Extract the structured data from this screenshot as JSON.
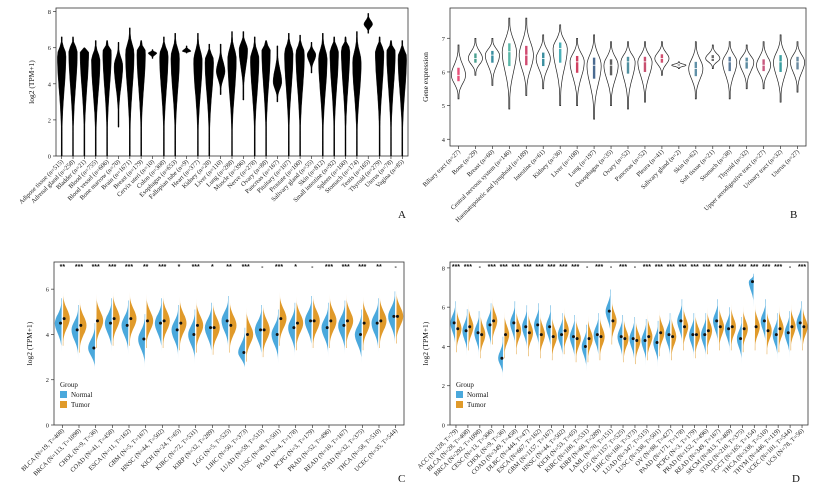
{
  "chart_data": [
    {
      "panel": "A",
      "type": "violin",
      "ylabel": "log2 (TPM+1)",
      "ylim": [
        0,
        8.2
      ],
      "yticks": [
        0,
        2,
        4,
        6,
        8
      ],
      "color": "#000000",
      "categories": [
        "Adipose tissue (n=515)",
        "Adrenal gland (n=258)",
        "Bladder (n=21)",
        "Blood (n=755)",
        "Blood vessel (n=606)",
        "Bone marrow (n=70)",
        "Brain (n=1671)",
        "Breast (n=179)",
        "Cervix uteri (n=10)",
        "Colon (n=308)",
        "Esophagus (n=653)",
        "Fallopian tube (n=9)",
        "Heart (n=377)",
        "Kidney (n=28)",
        "Liver (n=110)",
        "Lung (n=288)",
        "Muscle (n=396)",
        "Nerve (n=278)",
        "Ovary (n=88)",
        "Pancreas (n=167)",
        "Pituitary (n=107)",
        "Prostate (n=100)",
        "Salivary gland (n=55)",
        "Skin (n=812)",
        "Small intestine (n=92)",
        "Spleen (n=100)",
        "Stomach (n=174)",
        "Testis (n=165)",
        "Thyroid (n=279)",
        "Uterus (n=78)",
        "Vagina (n=85)"
      ],
      "median": [
        5.6,
        5.8,
        5.8,
        5.3,
        5.8,
        5.0,
        5.7,
        5.8,
        5.7,
        5.6,
        5.5,
        5.8,
        5.3,
        5.3,
        4.7,
        5.4,
        5.9,
        5.4,
        5.9,
        4.1,
        5.7,
        5.7,
        5.6,
        5.4,
        5.8,
        5.9,
        5.2,
        7.3,
        5.8,
        5.8,
        5.5
      ],
      "min": [
        0,
        0,
        0,
        0,
        0,
        1.6,
        0,
        0,
        5.4,
        0,
        0,
        5.7,
        0,
        0,
        3.4,
        0,
        3.1,
        0,
        0,
        3.0,
        0,
        0,
        4.6,
        0,
        0,
        0,
        0,
        6.8,
        0,
        0,
        0
      ],
      "max": [
        6.6,
        6.6,
        6.0,
        6.4,
        6.4,
        6.3,
        7.1,
        6.4,
        5.9,
        6.6,
        6.8,
        6.1,
        6.8,
        6.2,
        6.2,
        6.9,
        6.9,
        6.6,
        6.4,
        6.1,
        6.8,
        6.7,
        6.3,
        6.8,
        6.6,
        6.6,
        6.9,
        7.9,
        6.6,
        6.4,
        6.4
      ]
    },
    {
      "panel": "B",
      "type": "violin",
      "ylabel": "Gene expression",
      "ylim": [
        3.8,
        7.9
      ],
      "yticks": [
        4,
        5,
        6,
        7
      ],
      "categories": [
        "Biliary tract (n=27)",
        "Bone (n=29)",
        "Breast (n=60)",
        "Central nervous system (n=146)",
        "Haematopoietic and lymphoid (n=189)",
        "Intestine (n=61)",
        "Kidney (n=36)",
        "Liver (n=108)",
        "Lung (n=197)",
        "Oesophagus (n=35)",
        "Ovary (n=52)",
        "Pancreas (n=52)",
        "Pleura (n=41)",
        "Salivary gland (n=2)",
        "Skin (n=62)",
        "Soft tissue (n=21)",
        "Stomach (n=38)",
        "Thyroid (n=32)",
        "Upper aerodigestive tract (n=27)",
        "Urinary tract (n=32)",
        "Uterus (n=27)"
      ],
      "median": [
        5.9,
        6.4,
        6.5,
        6.6,
        6.5,
        6.4,
        6.7,
        6.3,
        6.2,
        6.2,
        6.3,
        6.3,
        6.4,
        6.2,
        6.1,
        6.4,
        6.3,
        6.3,
        6.2,
        6.3,
        6.3
      ],
      "min": [
        5.2,
        5.9,
        5.6,
        4.9,
        5.3,
        5.5,
        5.0,
        5.0,
        4.6,
        5.0,
        4.9,
        5.1,
        5.9,
        6.1,
        5.2,
        6.1,
        5.2,
        5.5,
        5.5,
        5.1,
        5.4
      ],
      "max": [
        6.8,
        7.0,
        7.0,
        7.6,
        7.6,
        7.1,
        7.4,
        7.0,
        7.1,
        6.9,
        6.9,
        6.9,
        6.9,
        6.3,
        6.9,
        6.8,
        6.9,
        6.8,
        6.9,
        7.1,
        6.9
      ],
      "colors": [
        "#e8507a",
        "#4aa090",
        "#3a8ea0",
        "#5ab8a8",
        "#d04a70",
        "#3a8e9e",
        "#4ab0b8",
        "#d04060",
        "#4a6a90",
        "#606060",
        "#5090a0",
        "#c85070",
        "#d05070",
        "#505050",
        "#6090a8",
        "#6a6a6a",
        "#5a7a9a",
        "#5a8aa0",
        "#c85a80",
        "#3a9ea0",
        "#6a8aa0"
      ]
    },
    {
      "panel": "C",
      "type": "split-violin",
      "ylabel": "log2 (TPM+1)",
      "ylim": [
        0,
        7.2
      ],
      "yticks": [
        0,
        2,
        4,
        6
      ],
      "legend": {
        "title": "Group",
        "entries": [
          "Normal",
          "Tumor"
        ]
      },
      "series_colors": {
        "Normal": "#4aa8dc",
        "Tumor": "#e09a2a"
      },
      "categories": [
        "BLCA (N=19, T=408)",
        "BRCA (N=113, T=1098)",
        "CHOL (N=9, T=36)",
        "COAD (N=41, T=458)",
        "ESCA (N=11, T=162)",
        "GBM (N=5, T=167)",
        "HNSC (N=44, T=502)",
        "KICH (N=24, T=65)",
        "KIRC (N=72, T=531)",
        "KIRP (N=32, T=289)",
        "LGG (N=5, T=525)",
        "LIHC (N=50, T=373)",
        "LUAD (N=59, T=515)",
        "LUSC (N=49, T=501)",
        "PAAD (N=4, T=178)",
        "PCPG (N=3, T=179)",
        "PRAD (N=52, T=496)",
        "READ (N=10, T=167)",
        "STAD (N=32, T=375)",
        "THCA (N=58, T=510)",
        "UCEC (N=35, T=544)"
      ],
      "significance": [
        "**",
        "***",
        "***",
        "***",
        "***",
        "**",
        "***",
        "*",
        "***",
        "*",
        "**",
        "***",
        "-",
        "***",
        "*",
        "-",
        "***",
        "***",
        "***",
        "**",
        "-"
      ],
      "normal_median": [
        4.5,
        4.2,
        3.4,
        4.5,
        4.4,
        3.8,
        4.5,
        4.2,
        4.0,
        4.3,
        4.6,
        3.2,
        4.2,
        4.0,
        4.3,
        4.6,
        4.3,
        4.4,
        4.0,
        4.5,
        4.8
      ],
      "tumor_median": [
        4.7,
        4.4,
        4.6,
        4.7,
        4.7,
        4.6,
        4.6,
        4.5,
        4.4,
        4.3,
        4.4,
        4.0,
        4.2,
        4.7,
        4.5,
        4.6,
        4.6,
        4.6,
        4.5,
        4.6,
        4.8
      ]
    },
    {
      "panel": "D",
      "type": "split-violin",
      "ylabel": "log2 (TPM+1)",
      "ylim": [
        0,
        8.3
      ],
      "yticks": [
        0,
        2,
        4,
        6,
        8
      ],
      "legend": {
        "title": "Group",
        "entries": [
          "Normal",
          "Tumor"
        ]
      },
      "series_colors": {
        "Normal": "#4aa8dc",
        "Tumor": "#e09a2a"
      },
      "categories": [
        "ACC (N=128, T=79)",
        "BLCA (N=28, T=408)",
        "BRCA (N=292, T=1098)",
        "CESC (N=13, T=306)",
        "CHOL (N=9, T=36)",
        "COAD (N=349, T=458)",
        "DLBC (N=444, T=47)",
        "ESCA (N=667, T=162)",
        "GBM (N=1157, T=167)",
        "HNSC (N=44, T=502)",
        "KICH (N=53, T=65)",
        "KIRC (N=100, T=531)",
        "KIRP (N=60, T=289)",
        "LAML (N=70, T=151)",
        "LGG (N=1157, T=525)",
        "LIHC (N=160, T=373)",
        "LUAD (N=347, T=515)",
        "LUSC (N=338, T=501)",
        "OV (N=88, T=427)",
        "PAAD (N=171, T=178)",
        "PCPG (N=3, T=179)",
        "PRAD (N=152, T=496)",
        "READ (N=349, T=167)",
        "SKCM (N=813, T=469)",
        "STAD (N=210, T=375)",
        "TGCT (N=165, T=154)",
        "THCA (N=338, T=510)",
        "THYM (N=446, T=119)",
        "UCEC (N=101, T=544)",
        "UCS (N=78, T=56)"
      ],
      "significance": [
        "***",
        "***",
        "-",
        "***",
        "***",
        "***",
        "***",
        "***",
        "***",
        "***",
        "***",
        "-",
        "***",
        "-",
        "***",
        "-",
        "***",
        "***",
        "***",
        "***",
        "***",
        "***",
        "***",
        "***",
        "***",
        "***",
        "***",
        "***",
        "-",
        "***"
      ],
      "normal_median": [
        5.2,
        4.8,
        4.7,
        5.1,
        3.4,
        5.2,
        5.0,
        5.1,
        5.0,
        4.6,
        4.5,
        4.0,
        4.6,
        5.8,
        4.5,
        4.4,
        4.3,
        4.2,
        4.6,
        5.3,
        4.6,
        4.6,
        5.3,
        4.9,
        4.4,
        7.3,
        5.3,
        4.6,
        4.7,
        5.2
      ],
      "tumor_median": [
        4.9,
        5.0,
        4.6,
        5.3,
        4.6,
        4.8,
        4.7,
        4.6,
        4.5,
        4.8,
        4.4,
        4.4,
        4.5,
        5.3,
        4.4,
        4.3,
        4.5,
        4.7,
        4.5,
        5.0,
        4.6,
        4.8,
        5.0,
        5.0,
        4.9,
        5.0,
        4.8,
        4.9,
        5.0,
        5.0
      ]
    }
  ],
  "panel_labels": {
    "A": "A",
    "B": "B",
    "C": "C",
    "D": "D"
  }
}
